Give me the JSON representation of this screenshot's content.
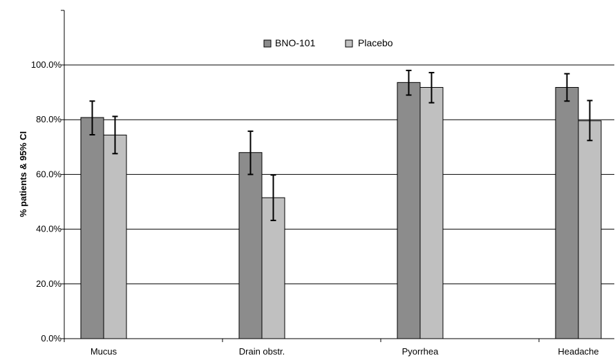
{
  "chart_data": {
    "type": "bar",
    "title": "",
    "xlabel": "",
    "ylabel": "% patients & 95% CI",
    "categories": [
      "Mucus",
      "Drain obstr.",
      "Pyorrhea",
      "Headache"
    ],
    "series": [
      {
        "name": "BNO-101",
        "color": "#8c8c8c",
        "values": [
          80.8,
          68.0,
          93.6,
          91.8
        ],
        "ci_low": [
          74.5,
          60.0,
          89.0,
          86.8
        ],
        "ci_high": [
          86.8,
          75.8,
          98.0,
          96.8
        ]
      },
      {
        "name": "Placebo",
        "color": "#c0c0c0",
        "values": [
          74.4,
          51.5,
          91.8,
          79.6
        ],
        "ci_low": [
          67.6,
          43.2,
          86.2,
          72.4
        ],
        "ci_high": [
          81.2,
          59.8,
          97.2,
          87.0
        ]
      }
    ],
    "ylim": [
      0,
      100
    ],
    "yticks": [
      0,
      20,
      40,
      60,
      80,
      100
    ],
    "ytick_labels": [
      "0.0%",
      "20.0%",
      "40.0%",
      "60.0%",
      "80.0%",
      "100.0%"
    ],
    "grid": true,
    "legend_position": "top-center"
  }
}
